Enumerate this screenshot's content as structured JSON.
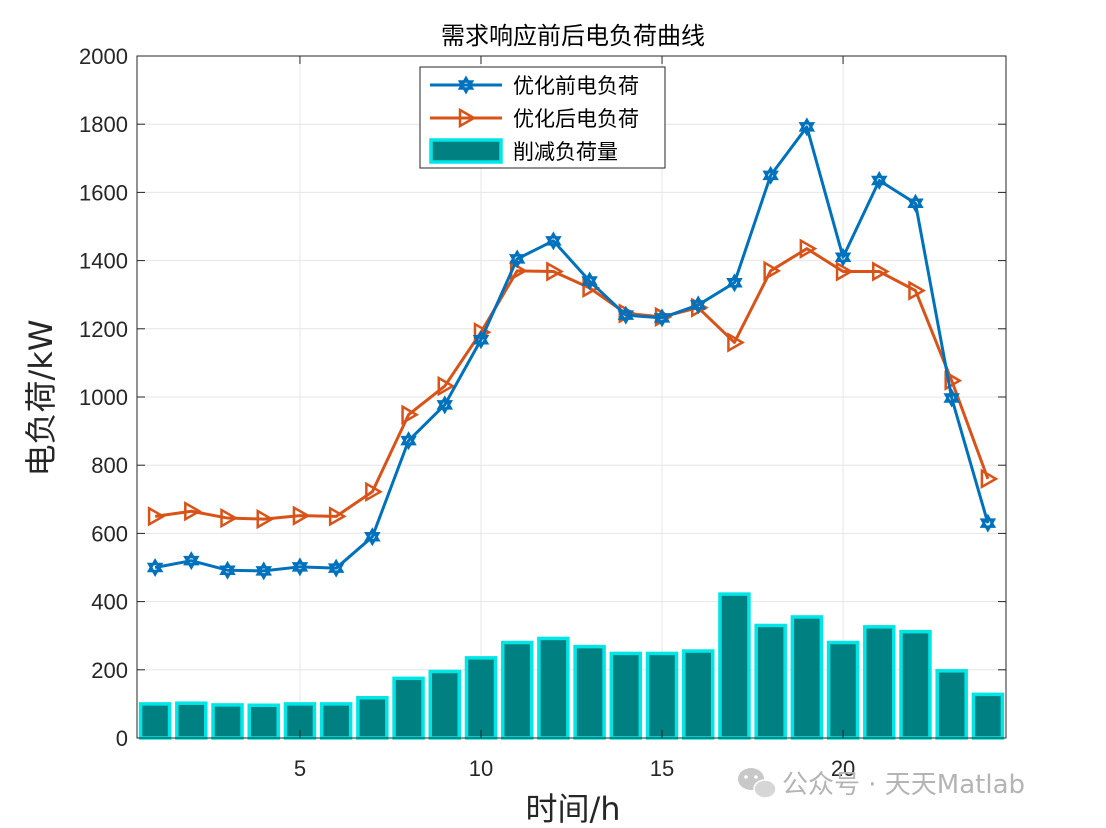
{
  "chart_data": {
    "type": "bar+line",
    "title": "需求响应前后电负荷曲线",
    "xlabel": "时间/h",
    "ylabel": "电负荷/kW",
    "xlim": [
      0.5,
      24.5
    ],
    "ylim": [
      0,
      2000
    ],
    "xticks": [
      5,
      10,
      15,
      20
    ],
    "yticks": [
      0,
      200,
      400,
      600,
      800,
      1000,
      1200,
      1400,
      1600,
      1800,
      2000
    ],
    "grid": true,
    "legend_position": "top-center",
    "x": [
      1,
      2,
      3,
      4,
      5,
      6,
      7,
      8,
      9,
      10,
      11,
      12,
      13,
      14,
      15,
      16,
      17,
      18,
      19,
      20,
      21,
      22,
      23,
      24
    ],
    "series": [
      {
        "name": "优化前电负荷",
        "kind": "line",
        "marker": "hexagram",
        "color": "#0072BD",
        "values": [
          500,
          520,
          492,
          490,
          502,
          498,
          590,
          872,
          977,
          1168,
          1405,
          1458,
          1340,
          1240,
          1232,
          1270,
          1335,
          1650,
          1792,
          1410,
          1635,
          1568,
          997,
          630
        ]
      },
      {
        "name": "优化后电负荷",
        "kind": "line",
        "marker": "triangle-right",
        "color": "#D95319",
        "values": [
          650,
          665,
          645,
          642,
          652,
          650,
          722,
          948,
          1032,
          1190,
          1370,
          1368,
          1320,
          1245,
          1235,
          1262,
          1160,
          1370,
          1435,
          1368,
          1368,
          1312,
          1048,
          760
        ]
      },
      {
        "name": "削减负荷量",
        "kind": "bar",
        "color": "#008080",
        "edge_color": "#00E5E5",
        "values": [
          100,
          102,
          97,
          96,
          100,
          100,
          118,
          175,
          195,
          235,
          280,
          292,
          268,
          248,
          248,
          255,
          422,
          330,
          355,
          280,
          326,
          312,
          197,
          128
        ]
      }
    ]
  },
  "watermark": {
    "text": "公众号 · 天天Matlab",
    "icon": "wechat-icon",
    "color": "#b4b4b4"
  }
}
